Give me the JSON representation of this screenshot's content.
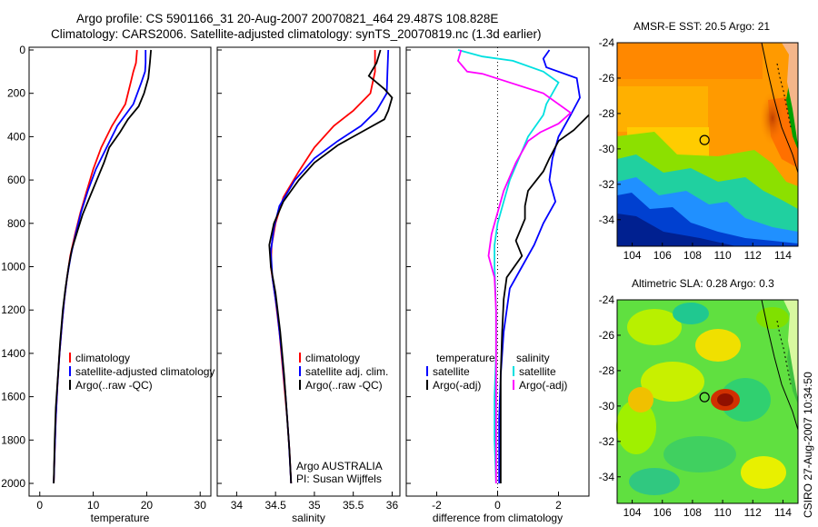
{
  "figure": {
    "title_line1": "Argo profile: CS 5901166_31 20-Aug-2007 20070821_464 29.487S 108.828E",
    "title_line2": "Climatology: CARS2006. Satellite-adjusted climatology: synTS_20070819.nc (1.3d earlier)",
    "footer_vertical": "CSIRO 27-Aug-2007 10:34:50",
    "annotation_line1": "Argo AUSTRALIA",
    "annotation_line2": "PI: Susan Wijffels"
  },
  "colors": {
    "climatology": "#ff0000",
    "satellite": "#0000ff",
    "argo": "#000000",
    "salinity_satellite": "#00e0e0",
    "salinity_argo": "#ff00ff"
  },
  "chart_data": [
    {
      "type": "line",
      "id": "temperature",
      "xlabel": "temperature",
      "ylabel": "",
      "xlim": [
        -2,
        32
      ],
      "ylim": [
        2050,
        0
      ],
      "xticks": [
        0,
        10,
        20,
        30
      ],
      "yticks": [
        0,
        200,
        400,
        600,
        800,
        1000,
        1200,
        1400,
        1600,
        1800,
        2000
      ],
      "legend": [
        "climatology",
        "satellite-adjusted climatology",
        "Argo(..raw -QC)"
      ],
      "series": [
        {
          "name": "climatology",
          "color": "#ff0000",
          "points": [
            [
              18.2,
              0
            ],
            [
              18.0,
              60
            ],
            [
              17.5,
              100
            ],
            [
              17.0,
              150
            ],
            [
              16.0,
              250
            ],
            [
              13.5,
              350
            ],
            [
              11.5,
              450
            ],
            [
              10.0,
              550
            ],
            [
              8.8,
              650
            ],
            [
              7.6,
              750
            ],
            [
              6.6,
              850
            ],
            [
              5.7,
              950
            ],
            [
              5.1,
              1050
            ],
            [
              4.6,
              1150
            ],
            [
              4.2,
              1250
            ],
            [
              3.7,
              1400
            ],
            [
              3.3,
              1550
            ],
            [
              3.0,
              1700
            ],
            [
              2.8,
              1850
            ],
            [
              2.6,
              2000
            ]
          ]
        },
        {
          "name": "satellite-adjusted climatology",
          "color": "#0000ff",
          "points": [
            [
              19.8,
              0
            ],
            [
              19.8,
              60
            ],
            [
              19.7,
              100
            ],
            [
              19.0,
              150
            ],
            [
              17.5,
              250
            ],
            [
              14.5,
              350
            ],
            [
              12.5,
              450
            ],
            [
              10.5,
              550
            ],
            [
              9.0,
              650
            ],
            [
              7.7,
              750
            ],
            [
              6.7,
              850
            ],
            [
              5.8,
              950
            ],
            [
              5.1,
              1050
            ],
            [
              4.6,
              1150
            ],
            [
              4.2,
              1250
            ],
            [
              3.7,
              1400
            ],
            [
              3.3,
              1550
            ],
            [
              3.0,
              1700
            ],
            [
              2.8,
              1850
            ],
            [
              2.6,
              2000
            ]
          ]
        },
        {
          "name": "Argo(..raw -QC)",
          "color": "#000000",
          "points": [
            [
              20.8,
              0
            ],
            [
              20.6,
              60
            ],
            [
              20.3,
              130
            ],
            [
              19.5,
              200
            ],
            [
              18.5,
              260
            ],
            [
              16.5,
              320
            ],
            [
              15.0,
              380
            ],
            [
              13.0,
              450
            ],
            [
              12.0,
              520
            ],
            [
              11.0,
              580
            ],
            [
              10.0,
              640
            ],
            [
              9.0,
              700
            ],
            [
              8.0,
              760
            ],
            [
              7.0,
              840
            ],
            [
              6.0,
              920
            ],
            [
              5.4,
              1000
            ],
            [
              4.8,
              1100
            ],
            [
              4.3,
              1200
            ],
            [
              3.8,
              1350
            ],
            [
              3.4,
              1500
            ],
            [
              3.0,
              1650
            ],
            [
              2.8,
              1800
            ],
            [
              2.6,
              2000
            ]
          ]
        }
      ]
    },
    {
      "type": "line",
      "id": "salinity",
      "xlabel": "salinity",
      "ylabel": "",
      "xlim": [
        33.75,
        36.1
      ],
      "ylim": [
        2050,
        0
      ],
      "xticks": [
        34,
        34.5,
        35,
        35.5,
        36
      ],
      "yticks": [
        0,
        200,
        400,
        600,
        800,
        1000,
        1200,
        1400,
        1600,
        1800,
        2000
      ],
      "legend": [
        "climatology",
        "satellite adj. clim.",
        "Argo(..raw -QC)"
      ],
      "series": [
        {
          "name": "climatology",
          "color": "#ff0000",
          "points": [
            [
              35.78,
              0
            ],
            [
              35.78,
              100
            ],
            [
              35.72,
              200
            ],
            [
              35.5,
              280
            ],
            [
              35.25,
              350
            ],
            [
              35.0,
              450
            ],
            [
              34.8,
              560
            ],
            [
              34.6,
              680
            ],
            [
              34.5,
              800
            ],
            [
              34.45,
              900
            ],
            [
              34.44,
              1000
            ],
            [
              34.5,
              1150
            ],
            [
              34.55,
              1300
            ],
            [
              34.6,
              1500
            ],
            [
              34.65,
              1700
            ],
            [
              34.68,
              1850
            ],
            [
              34.7,
              2000
            ]
          ]
        },
        {
          "name": "satellite adj. clim.",
          "color": "#0000ff",
          "points": [
            [
              35.95,
              0
            ],
            [
              35.94,
              100
            ],
            [
              35.93,
              200
            ],
            [
              35.8,
              280
            ],
            [
              35.6,
              350
            ],
            [
              35.3,
              420
            ],
            [
              35.0,
              500
            ],
            [
              34.75,
              600
            ],
            [
              34.55,
              720
            ],
            [
              34.48,
              820
            ],
            [
              34.44,
              930
            ],
            [
              34.46,
              1050
            ],
            [
              34.52,
              1200
            ],
            [
              34.58,
              1400
            ],
            [
              34.63,
              1600
            ],
            [
              34.67,
              1800
            ],
            [
              34.7,
              2000
            ]
          ]
        },
        {
          "name": "Argo(..raw -QC)",
          "color": "#000000",
          "points": [
            [
              35.85,
              0
            ],
            [
              35.8,
              60
            ],
            [
              35.7,
              120
            ],
            [
              35.9,
              180
            ],
            [
              36.0,
              220
            ],
            [
              35.95,
              280
            ],
            [
              35.9,
              320
            ],
            [
              35.6,
              380
            ],
            [
              35.3,
              440
            ],
            [
              35.0,
              520
            ],
            [
              34.8,
              600
            ],
            [
              34.6,
              700
            ],
            [
              34.48,
              800
            ],
            [
              34.42,
              900
            ],
            [
              34.44,
              1000
            ],
            [
              34.5,
              1120
            ],
            [
              34.56,
              1300
            ],
            [
              34.61,
              1500
            ],
            [
              34.65,
              1700
            ],
            [
              34.68,
              1850
            ],
            [
              34.7,
              2000
            ]
          ]
        }
      ]
    },
    {
      "type": "line",
      "id": "difference",
      "xlabel": "difference from climatology",
      "ylabel": "",
      "xlim": [
        -3,
        3
      ],
      "ylim": [
        2050,
        0
      ],
      "xticks": [
        -2,
        0,
        2
      ],
      "yticks": [
        0,
        200,
        400,
        600,
        800,
        1000,
        1200,
        1400,
        1600,
        1800,
        2000
      ],
      "legend_groups": [
        {
          "header": "temperature",
          "items": [
            "satellite",
            "Argo(-adj)"
          ]
        },
        {
          "header": "salinity",
          "items": [
            "satellite",
            "Argo(-adj)"
          ]
        }
      ],
      "series": [
        {
          "name": "satellite",
          "variable": "temperature",
          "color": "#0000ff",
          "points": [
            [
              1.7,
              0
            ],
            [
              1.5,
              40
            ],
            [
              1.6,
              80
            ],
            [
              2.6,
              130
            ],
            [
              2.7,
              220
            ],
            [
              2.4,
              300
            ],
            [
              2.0,
              400
            ],
            [
              1.8,
              500
            ],
            [
              1.7,
              600
            ],
            [
              1.9,
              700
            ],
            [
              1.5,
              800
            ],
            [
              1.2,
              900
            ],
            [
              0.8,
              1000
            ],
            [
              0.4,
              1100
            ],
            [
              0.2,
              1300
            ],
            [
              0.1,
              1500
            ],
            [
              0.05,
              1700
            ],
            [
              0.05,
              2000
            ]
          ]
        },
        {
          "name": "Argo(-adj)",
          "variable": "temperature",
          "color": "#000000",
          "points": [
            [
              3.0,
              300
            ],
            [
              2.5,
              370
            ],
            [
              2.0,
              420
            ],
            [
              1.7,
              500
            ],
            [
              1.5,
              560
            ],
            [
              1.0,
              650
            ],
            [
              0.9,
              720
            ],
            [
              0.9,
              780
            ],
            [
              0.6,
              880
            ],
            [
              0.8,
              950
            ],
            [
              0.3,
              1050
            ],
            [
              0.2,
              1150
            ],
            [
              0.15,
              1300
            ],
            [
              0.1,
              1500
            ],
            [
              0.1,
              1700
            ],
            [
              0.1,
              2000
            ]
          ]
        },
        {
          "name": "satellite",
          "variable": "salinity",
          "color": "#00e0e0",
          "points": [
            [
              -1.3,
              0
            ],
            [
              -0.5,
              30
            ],
            [
              0.5,
              50
            ],
            [
              1.5,
              100
            ],
            [
              2.0,
              150
            ],
            [
              1.6,
              250
            ],
            [
              1.5,
              300
            ],
            [
              1.0,
              400
            ],
            [
              0.7,
              500
            ],
            [
              0.4,
              600
            ],
            [
              0.2,
              700
            ],
            [
              0.0,
              800
            ],
            [
              -0.1,
              900
            ],
            [
              -0.1,
              1000
            ],
            [
              -0.05,
              1200
            ],
            [
              -0.05,
              1400
            ],
            [
              -0.1,
              1600
            ],
            [
              -0.1,
              1800
            ],
            [
              -0.05,
              2000
            ]
          ]
        },
        {
          "name": "Argo(-adj)",
          "variable": "salinity",
          "color": "#ff00ff",
          "points": [
            [
              -1.2,
              0
            ],
            [
              -1.3,
              50
            ],
            [
              -1.0,
              100
            ],
            [
              -0.5,
              110
            ],
            [
              1.5,
              200
            ],
            [
              2.4,
              290
            ],
            [
              2.0,
              340
            ],
            [
              1.4,
              380
            ],
            [
              1.0,
              420
            ],
            [
              0.6,
              520
            ],
            [
              0.2,
              650
            ],
            [
              0.0,
              750
            ],
            [
              -0.2,
              850
            ],
            [
              -0.3,
              950
            ],
            [
              -0.1,
              1050
            ],
            [
              -0.05,
              1200
            ],
            [
              -0.05,
              1400
            ],
            [
              -0.05,
              1600
            ],
            [
              -0.05,
              1800
            ],
            [
              -0.05,
              2000
            ]
          ]
        }
      ]
    },
    {
      "type": "heatmap",
      "id": "sst_map",
      "title": "AMSR-E SST: 20.5 Argo: 21",
      "xlim": [
        103,
        115
      ],
      "ylim": [
        -35.5,
        -24
      ],
      "xticks": [
        104,
        106,
        108,
        110,
        112,
        114
      ],
      "yticks": [
        -24,
        -26,
        -28,
        -30,
        -32,
        -34
      ],
      "marker": {
        "lon": 108.8,
        "lat": -29.5
      }
    },
    {
      "type": "heatmap",
      "id": "sla_map",
      "title": "Altimetric SLA: 0.28 Argo: 0.3",
      "xlim": [
        103,
        115
      ],
      "ylim": [
        -35.5,
        -24
      ],
      "xticks": [
        104,
        106,
        108,
        110,
        112,
        114
      ],
      "yticks": [
        -24,
        -26,
        -28,
        -30,
        -32,
        -34
      ],
      "marker": {
        "lon": 108.8,
        "lat": -29.5
      }
    }
  ]
}
